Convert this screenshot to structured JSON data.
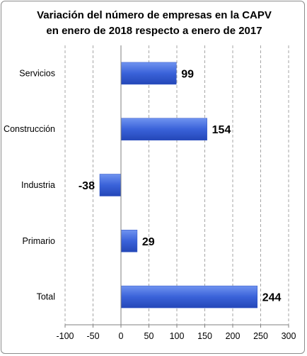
{
  "chart_data": {
    "type": "bar",
    "orientation": "horizontal",
    "title": [
      "Variación del número de empresas en la CAPV",
      "en enero de 2018 respecto a enero de 2017"
    ],
    "categories": [
      "Servicios",
      "Construcción",
      "Industria",
      "Primario",
      "Total"
    ],
    "values": [
      99,
      154,
      -38,
      29,
      244
    ],
    "data_labels": [
      "99",
      "154",
      "-38",
      "29",
      "244"
    ],
    "xlim": [
      -100,
      300
    ],
    "xticks": [
      -100,
      -50,
      0,
      50,
      100,
      150,
      200,
      250,
      300
    ],
    "xtick_labels": [
      "-100",
      "-50",
      "0",
      "50",
      "100",
      "150",
      "200",
      "250",
      "300"
    ],
    "grid": "vertical dashed",
    "legend": "none",
    "bar_color": "#3a62d9"
  }
}
